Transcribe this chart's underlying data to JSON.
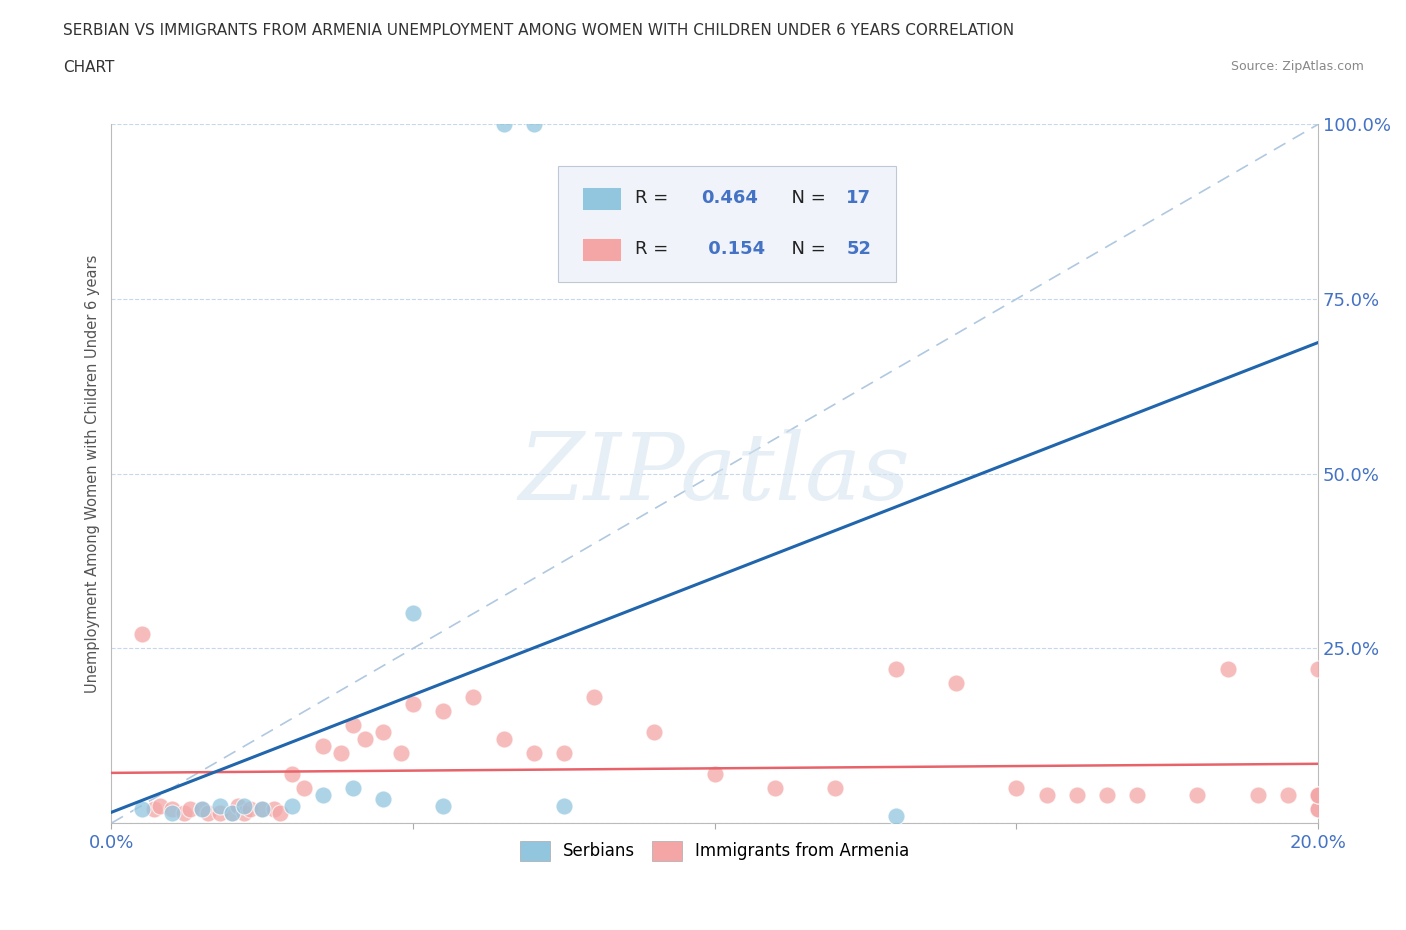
{
  "title_line1": "SERBIAN VS IMMIGRANTS FROM ARMENIA UNEMPLOYMENT AMONG WOMEN WITH CHILDREN UNDER 6 YEARS CORRELATION",
  "title_line2": "CHART",
  "source": "Source: ZipAtlas.com",
  "ylabel": "Unemployment Among Women with Children Under 6 years",
  "xlim": [
    0.0,
    0.2
  ],
  "ylim": [
    0.0,
    1.0
  ],
  "serbian_color": "#92c5de",
  "armenian_color": "#f4a6a6",
  "serbian_line_color": "#2166ac",
  "armenian_line_color": "#e8626a",
  "dashed_line_color": "#b0c8e0",
  "serbian_R": 0.464,
  "serbian_N": 17,
  "armenian_R": 0.154,
  "armenian_N": 52,
  "serbian_scatter_x": [
    0.005,
    0.01,
    0.015,
    0.018,
    0.02,
    0.022,
    0.025,
    0.03,
    0.035,
    0.04,
    0.045,
    0.05,
    0.055,
    0.065,
    0.07,
    0.075,
    0.13
  ],
  "serbian_scatter_y": [
    0.02,
    0.015,
    0.02,
    0.025,
    0.015,
    0.025,
    0.02,
    0.025,
    0.04,
    0.05,
    0.035,
    0.3,
    0.025,
    1.0,
    1.0,
    0.025,
    0.01
  ],
  "armenian_scatter_x": [
    0.005,
    0.007,
    0.008,
    0.01,
    0.012,
    0.013,
    0.015,
    0.016,
    0.018,
    0.02,
    0.021,
    0.022,
    0.023,
    0.025,
    0.027,
    0.028,
    0.03,
    0.032,
    0.035,
    0.038,
    0.04,
    0.042,
    0.045,
    0.048,
    0.05,
    0.055,
    0.06,
    0.065,
    0.07,
    0.075,
    0.08,
    0.09,
    0.1,
    0.11,
    0.12,
    0.13,
    0.14,
    0.15,
    0.155,
    0.16,
    0.165,
    0.17,
    0.18,
    0.185,
    0.19,
    0.195,
    0.2,
    0.2,
    0.2,
    0.2,
    0.2,
    0.2
  ],
  "armenian_scatter_y": [
    0.27,
    0.02,
    0.025,
    0.02,
    0.015,
    0.02,
    0.02,
    0.015,
    0.015,
    0.015,
    0.025,
    0.015,
    0.02,
    0.02,
    0.02,
    0.015,
    0.07,
    0.05,
    0.11,
    0.1,
    0.14,
    0.12,
    0.13,
    0.1,
    0.17,
    0.16,
    0.18,
    0.12,
    0.1,
    0.1,
    0.18,
    0.13,
    0.07,
    0.05,
    0.05,
    0.22,
    0.2,
    0.05,
    0.04,
    0.04,
    0.04,
    0.04,
    0.04,
    0.22,
    0.04,
    0.04,
    0.02,
    0.04,
    0.02,
    0.04,
    0.22,
    0.04
  ],
  "watermark_text": "ZIPatlas",
  "background_color": "#ffffff",
  "grid_color": "#c8d8ec",
  "legend_color": "#4472c4",
  "legend_box_bg": "#f0f4fa"
}
